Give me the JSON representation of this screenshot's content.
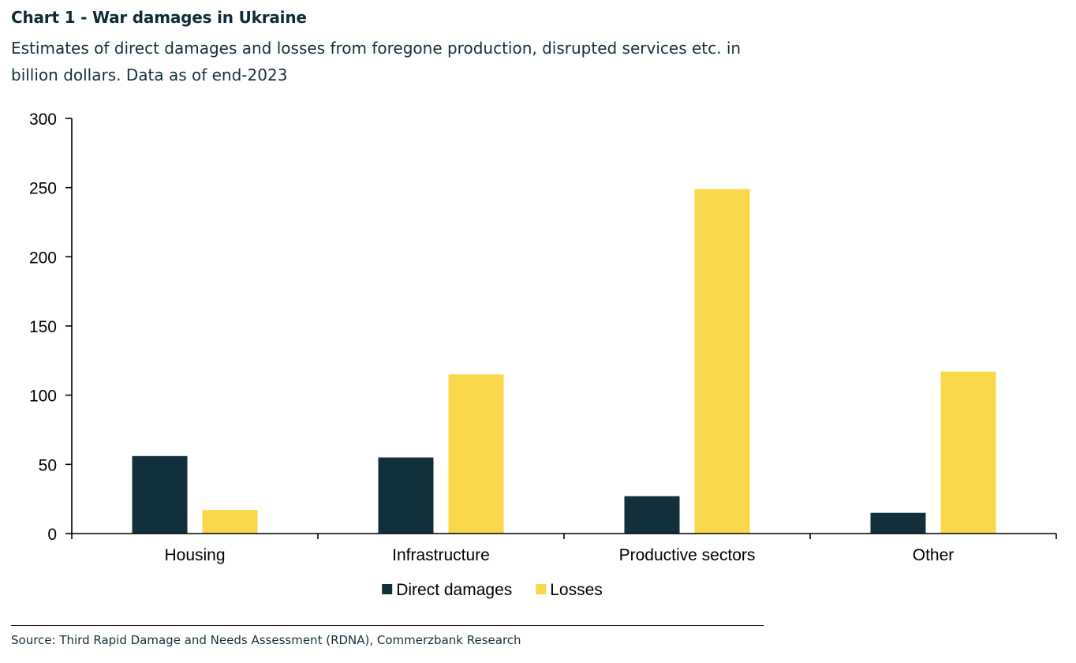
{
  "header": {
    "title": "Chart 1 - War damages in Ukraine",
    "subtitle": "Estimates of direct damages and losses from foregone production, disrupted services etc. in billion dollars. Data as of end-2023"
  },
  "footer": {
    "source": "Source: Third Rapid Damage and Needs Assessment (RDNA), Commerzbank Research"
  },
  "chart_data": {
    "type": "bar",
    "categories": [
      "Housing",
      "Infrastructure",
      "Productive sectors",
      "Other"
    ],
    "series": [
      {
        "name": "Direct damages",
        "color": "#122f3c",
        "values": [
          56,
          55,
          27,
          15
        ]
      },
      {
        "name": "Losses",
        "color": "#f8d84a",
        "values": [
          17,
          115,
          249,
          117
        ]
      }
    ],
    "ylim": [
      0,
      300
    ],
    "yticks": [
      0,
      50,
      100,
      150,
      200,
      250,
      300
    ],
    "xlabel": "",
    "ylabel": "",
    "grid": false,
    "legend_position": "bottom-center"
  }
}
